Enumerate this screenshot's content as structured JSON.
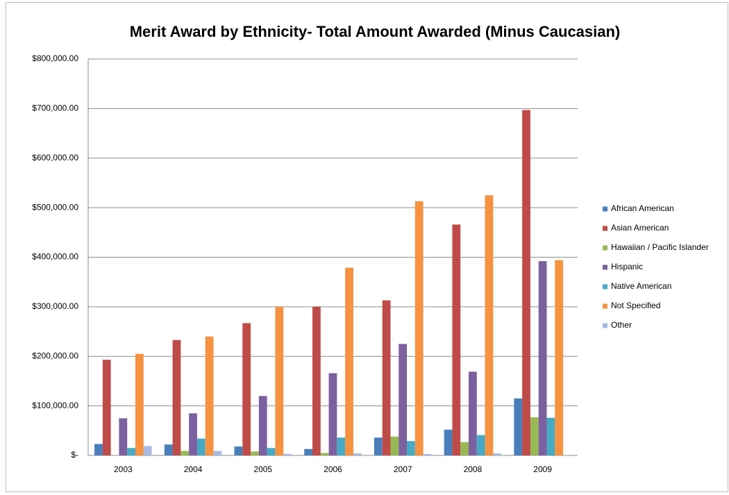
{
  "chart_data": {
    "type": "bar",
    "title": "Merit Award by Ethnicity- Total Amount Awarded (Minus Caucasian)",
    "categories": [
      "2003",
      "2004",
      "2005",
      "2006",
      "2007",
      "2008",
      "2009"
    ],
    "series": [
      {
        "name": "African American",
        "color": "#4a7ebb",
        "values": [
          23000,
          22000,
          18000,
          13000,
          36000,
          52000,
          115000
        ]
      },
      {
        "name": "Asian American",
        "color": "#be4b48",
        "values": [
          193000,
          233000,
          267000,
          300000,
          313000,
          466000,
          697000
        ]
      },
      {
        "name": "Hawaiian / Pacific Islander",
        "color": "#98b954",
        "values": [
          0,
          9000,
          8000,
          5000,
          38000,
          27000,
          77000
        ]
      },
      {
        "name": "Hispanic",
        "color": "#7d60a0",
        "values": [
          75000,
          85000,
          120000,
          166000,
          225000,
          169000,
          392000
        ]
      },
      {
        "name": "Native American",
        "color": "#46aac5",
        "values": [
          15000,
          34000,
          15000,
          36000,
          29000,
          41000,
          76000
        ]
      },
      {
        "name": "Not Specified",
        "color": "#f69240",
        "values": [
          205000,
          240000,
          300000,
          379000,
          513000,
          525000,
          394000
        ]
      },
      {
        "name": "Other",
        "color": "#a7b9e3",
        "values": [
          19000,
          9000,
          3000,
          4000,
          3000,
          4000,
          0
        ]
      }
    ],
    "ylim": [
      0,
      800000
    ],
    "yticks": [
      {
        "value": 0,
        "label": "$-"
      },
      {
        "value": 100000,
        "label": "$100,000.00"
      },
      {
        "value": 200000,
        "label": "$200,000.00"
      },
      {
        "value": 300000,
        "label": "$300,000.00"
      },
      {
        "value": 400000,
        "label": "$400,000.00"
      },
      {
        "value": 500000,
        "label": "$500,000.00"
      },
      {
        "value": 600000,
        "label": "$600,000.00"
      },
      {
        "value": 700000,
        "label": "$700,000.00"
      },
      {
        "value": 800000,
        "label": "$800,000.00"
      }
    ],
    "grid": true,
    "legend": "right"
  }
}
